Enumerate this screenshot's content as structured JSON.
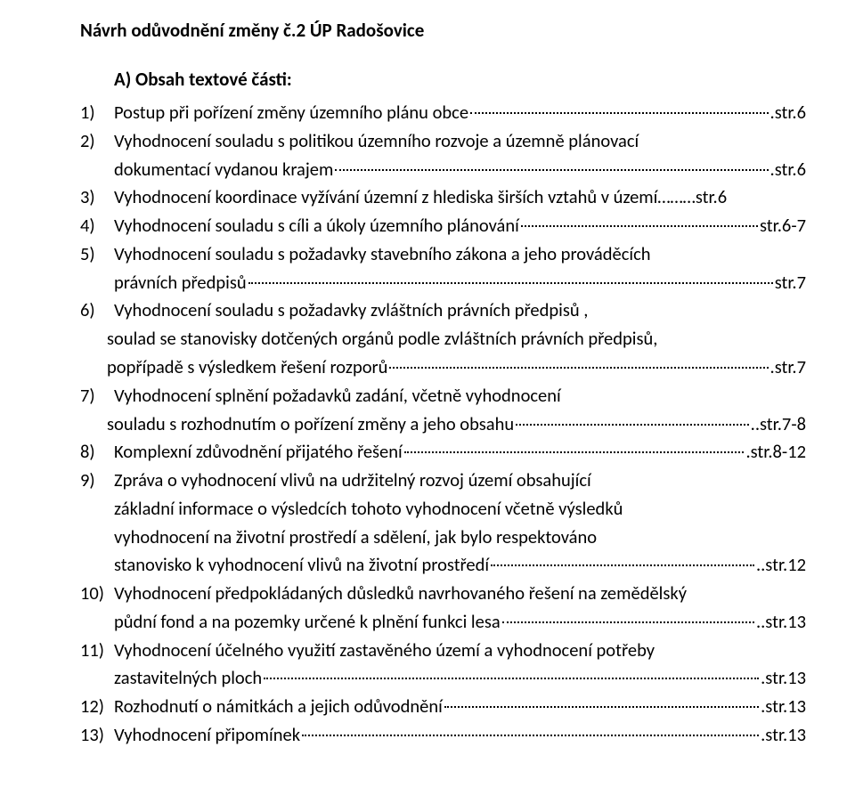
{
  "document": {
    "title": "Návrh odůvodnění změny č.2 ÚP Radošovice",
    "section_heading": "A)  Obsah textové části:",
    "items": [
      {
        "num": "1)",
        "lines": [
          {
            "text": "Postup při pořízení změny územního plánu obce",
            "page": ".str.6",
            "leaders": true
          }
        ]
      },
      {
        "num": "2)",
        "lines": [
          {
            "text": "Vyhodnocení souladu s politikou územního rozvoje a územně plánovací"
          },
          {
            "text": "dokumentací vydanou krajem",
            "page": ".str.6",
            "leaders": true
          }
        ]
      },
      {
        "num": "3)",
        "lines": [
          {
            "text": "Vyhodnocení koordinace vyžívání územní z hlediska širších vztahů v území………str.6"
          }
        ]
      },
      {
        "num": "4)",
        "lines": [
          {
            "text": "Vyhodnocení souladu s cíli a úkoly územního plánování",
            "page": "str.6-7",
            "leaders": true
          }
        ]
      },
      {
        "num": "5)",
        "lines": [
          {
            "text": "Vyhodnocení souladu s požadavky stavebního zákona a jeho prováděcích"
          },
          {
            "text": "právních předpisů",
            "page": "str.7",
            "leaders": true
          }
        ]
      },
      {
        "num": "6)",
        "lines": [
          {
            "text": "Vyhodnocení souladu s požadavky zvláštních právních předpisů ,"
          },
          {
            "text": "soulad se stanovisky dotčených orgánů podle zvláštních právních předpisů,",
            "indent": -8
          },
          {
            "text": "popřípadě s výsledkem řešení rozporů",
            "page": ".str.7",
            "leaders": true,
            "indent": -8
          }
        ]
      },
      {
        "num": "7)",
        "lines": [
          {
            "text": "Vyhodnocení splnění požadavků zadání, včetně vyhodnocení"
          },
          {
            "text": "souladu s rozhodnutím o pořízení změny a jeho obsahu",
            "page": "..str.7-8",
            "leaders": true,
            "indent": -8
          }
        ]
      },
      {
        "num": "8)",
        "lines": [
          {
            "text": "Komplexní zdůvodnění přijatého řešení",
            "page": ".str.8-12",
            "leaders": true
          }
        ]
      },
      {
        "num": "9)",
        "lines": [
          {
            "text": "Zpráva o vyhodnocení vlivů na udržitelný rozvoj území obsahující"
          },
          {
            "text": "základní informace o výsledcích tohoto vyhodnocení včetně výsledků"
          },
          {
            "text": "vyhodnocení na životní prostředí a sdělení, jak bylo respektováno"
          },
          {
            "text": "stanovisko k vyhodnocení vlivů na životní prostředí",
            "page": "..str.12",
            "leaders": true
          }
        ]
      },
      {
        "num": "10)",
        "lines": [
          {
            "text": "Vyhodnocení předpokládaných důsledků navrhovaného řešení na zemědělský"
          },
          {
            "text": "půdní fond a na pozemky určené k plnění funkci lesa",
            "page": "..str.13",
            "leaders": true
          }
        ]
      },
      {
        "num": "11)",
        "lines": [
          {
            "text": "Vyhodnocení účelného využití zastavěného území a vyhodnocení potřeby"
          },
          {
            "text": "zastavitelných ploch",
            "page": ".str.13",
            "leaders": true
          }
        ]
      },
      {
        "num": "12)",
        "lines": [
          {
            "text": "Rozhodnutí o námitkách a jejich odůvodnění",
            "page": ".str.13",
            "leaders": true
          }
        ]
      },
      {
        "num": "13)",
        "lines": [
          {
            "text": "Vyhodnocení připomínek",
            "page": ".str.13",
            "leaders": true
          }
        ]
      }
    ]
  }
}
